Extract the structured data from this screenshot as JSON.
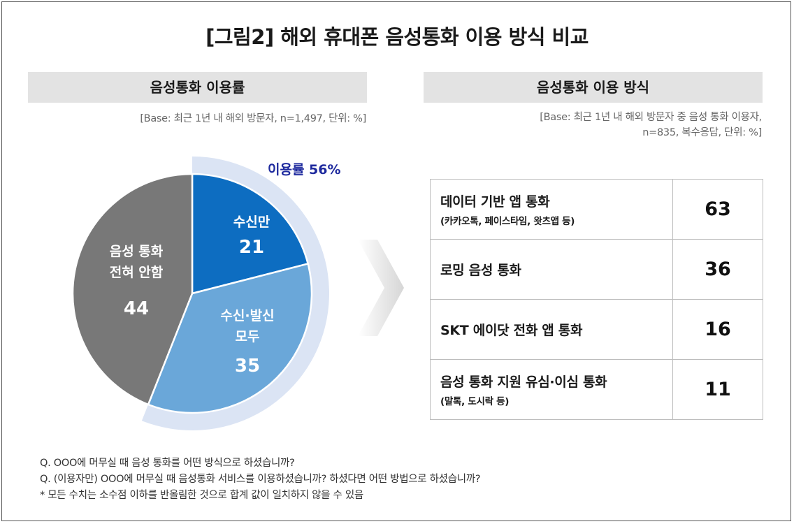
{
  "title": "[그림2] 해외 휴대폰 음성통화 이용 방식 비교",
  "left_panel": {
    "header": "음성통화 이용률",
    "base_note": "[Base: 최근 1년 내 해외 방문자, n=1,497, 단위: %]",
    "usage_label": "이용률 56%"
  },
  "right_panel": {
    "header": "음성통화 이용 방식",
    "base_note_line1": "[Base: 최근 1년 내 해외 방문자 중 음성 통화 이용자,",
    "base_note_line2": "n=835, 복수응답, 단위: %]"
  },
  "chart_data": [
    {
      "type": "pie",
      "slices": [
        {
          "label_line1": "수신만",
          "label_line2": "",
          "value": 21,
          "color": "#0d6dc1"
        },
        {
          "label_line1": "수신·발신",
          "label_line2": "모두",
          "value": 35,
          "color": "#6aa7d9"
        },
        {
          "label_line1": "음성 통화",
          "label_line2": "전혀 안함",
          "value": 44,
          "color": "#787878"
        }
      ],
      "highlight_arc": {
        "label": "이용률 56%",
        "value": 56,
        "color": "#dbe4f4"
      }
    },
    {
      "type": "table",
      "rows": [
        {
          "label": "데이터 기반 앱 통화",
          "sublabel": "(카카오톡, 페이스타임, 왓츠앱 등)",
          "value": 63
        },
        {
          "label": "로밍 음성 통화",
          "sublabel": "",
          "value": 36
        },
        {
          "label": "SKT 에이닷 전화 앱 통화",
          "sublabel": "",
          "value": 16
        },
        {
          "label": "음성 통화 지원 유심·이심 통화",
          "sublabel": "(말톡, 도시락 등)",
          "value": 11
        }
      ]
    }
  ],
  "footnotes": [
    "Q. OOO에 머무실 때 음성 통화를 어떤 방식으로 하셨습니까?",
    "Q. (이용자만) OOO에 머무실 때 음성통화 서비스를 이용하셨습니까? 하셨다면 어떤 방법으로 하셨습니까?",
    "* 모든 수치는 소수점 이하를 반올림한 것으로 합계 값이 일치하지 않을 수 있음"
  ]
}
